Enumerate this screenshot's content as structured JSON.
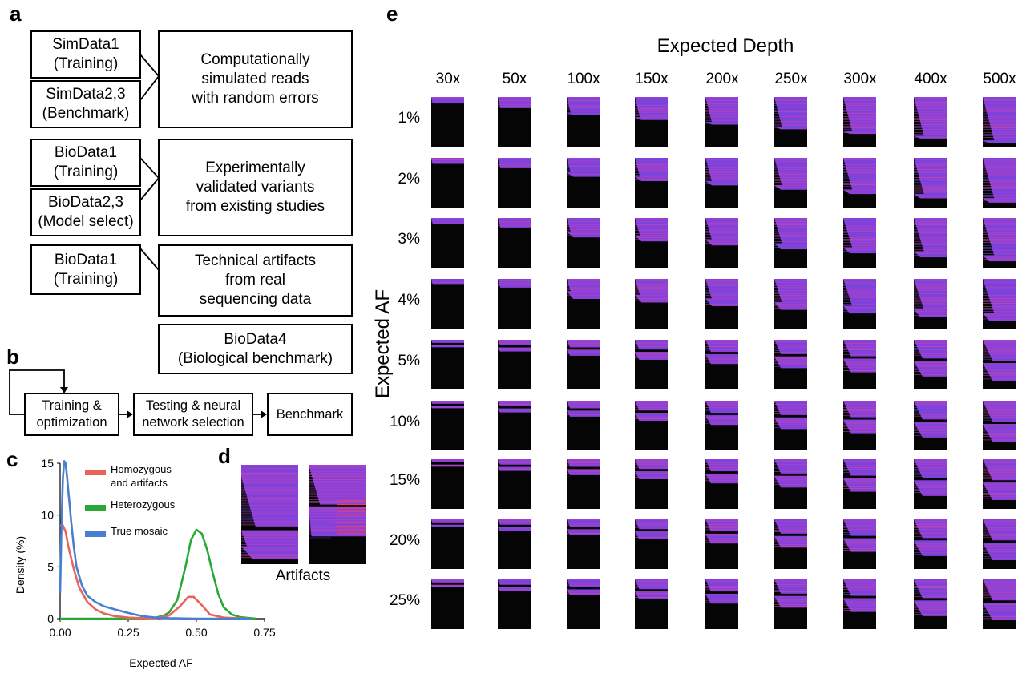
{
  "panel_labels": {
    "a": "a",
    "b": "b",
    "c": "c",
    "d": "d",
    "e": "e"
  },
  "panel_a": {
    "groups": [
      {
        "left": [
          "SimData1\n(Training)",
          "SimData2,3\n(Benchmark)"
        ],
        "right": "Computationally\nsimulated reads\nwith random errors"
      },
      {
        "left": [
          "BioData1\n(Training)",
          "BioData2,3\n(Model select)"
        ],
        "right": "Experimentally\nvalidated variants\nfrom existing studies"
      },
      {
        "left": [
          "BioData1\n(Training)"
        ],
        "right": "Technical artifacts\nfrom real\nsequencing data"
      }
    ],
    "extra": "BioData4\n(Biological benchmark)"
  },
  "panel_b": {
    "steps": [
      "Training &\noptimization",
      "Testing & neural\nnetwork selection",
      "Benchmark"
    ]
  },
  "panel_d": {
    "caption": "Artifacts"
  },
  "panel_e": {
    "title": "Expected Depth",
    "ylabel": "Expected AF",
    "columns": [
      "30x",
      "50x",
      "100x",
      "150x",
      "200x",
      "250x",
      "300x",
      "400x",
      "500x"
    ],
    "rows": [
      "1%",
      "2%",
      "3%",
      "4%",
      "5%",
      "10%",
      "15%",
      "20%",
      "25%"
    ]
  },
  "chart_data": {
    "type": "line",
    "xlabel": "Expected AF",
    "ylabel": "Density (%)",
    "xlim": [
      0,
      0.75
    ],
    "ylim": [
      0,
      15
    ],
    "xticks": [
      "0.00",
      "0.25",
      "0.50",
      "0.75"
    ],
    "yticks": [
      "0",
      "5",
      "10",
      "15"
    ],
    "legend_position": "top-right",
    "series": [
      {
        "name": "Homozygous\nand artifacts",
        "color": "#e8645a",
        "x": [
          0,
          0.01,
          0.02,
          0.03,
          0.05,
          0.07,
          0.1,
          0.13,
          0.16,
          0.2,
          0.25,
          0.3,
          0.35,
          0.4,
          0.44,
          0.47,
          0.49,
          0.52,
          0.55,
          0.6,
          0.65,
          0.7
        ],
        "y": [
          9,
          9,
          8.4,
          7,
          4.8,
          3,
          1.6,
          0.9,
          0.5,
          0.25,
          0.1,
          0.05,
          0.05,
          0.3,
          1.2,
          2.1,
          2.1,
          1.3,
          0.4,
          0.1,
          0.05,
          0
        ]
      },
      {
        "name": "Heterozygous",
        "color": "#2aa836",
        "x": [
          0,
          0.1,
          0.2,
          0.3,
          0.35,
          0.38,
          0.4,
          0.43,
          0.46,
          0.48,
          0.5,
          0.52,
          0.54,
          0.56,
          0.58,
          0.6,
          0.63,
          0.66,
          0.7,
          0.72
        ],
        "y": [
          0,
          0,
          0,
          0,
          0.1,
          0.3,
          0.6,
          1.8,
          5,
          7.6,
          8.6,
          8.2,
          6.6,
          4.4,
          2.4,
          1.1,
          0.4,
          0.15,
          0.05,
          0
        ]
      },
      {
        "name": "True mosaic",
        "color": "#4a7fd0",
        "x": [
          0,
          0.005,
          0.01,
          0.015,
          0.02,
          0.025,
          0.03,
          0.035,
          0.04,
          0.05,
          0.06,
          0.08,
          0.1,
          0.13,
          0.16,
          0.2,
          0.25,
          0.3,
          0.35,
          0.4,
          0.5,
          0.6,
          0.7
        ],
        "y": [
          2.5,
          9,
          13.5,
          15.2,
          15,
          13.8,
          12.3,
          11,
          9.5,
          7,
          5,
          3.2,
          2.2,
          1.6,
          1.2,
          0.9,
          0.55,
          0.25,
          0.1,
          0.05,
          0,
          0,
          0
        ]
      }
    ]
  }
}
